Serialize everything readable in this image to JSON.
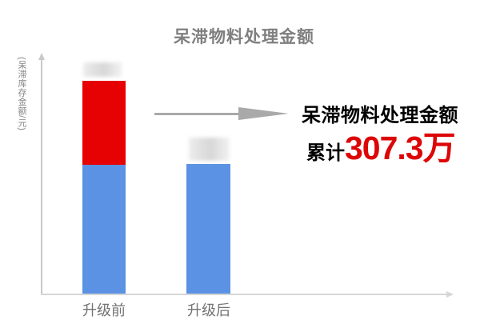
{
  "title": "呆滞物料处理金额",
  "y_axis_label": "(呆滞库存金额/元)",
  "categories": [
    "升级前",
    "升级后"
  ],
  "annotation": {
    "line1": "呆滞物料处理金额",
    "prefix": "累计",
    "value": "307.3万"
  },
  "colors": {
    "bar_blue": "#5c92e3",
    "bar_red": "#e60202",
    "title_gray": "#7f7f7f",
    "axis_gray": "#c9c9c9",
    "callout_arrow_gray": "#a9a9a9",
    "annotation_black": "#000000",
    "annotation_red": "#dd0606"
  },
  "chart_data": {
    "type": "bar",
    "stacked": true,
    "title": "呆滞物料处理金额",
    "ylabel": "(呆滞库存金额/元)",
    "xlabel": "",
    "categories": [
      "升级前",
      "升级后"
    ],
    "series": [
      {
        "name": "remaining-inventory-blue",
        "relative_heights": [
          0.553,
          0.556
        ]
      },
      {
        "name": "processed-amount-red",
        "relative_heights": [
          0.358,
          0
        ]
      }
    ],
    "bar_value_labels": [
      "redacted-blur",
      "redacted-blur"
    ],
    "annotation": "呆滞物料处理金额 累计307.3万",
    "axis_ranges": {
      "y_ticks": [],
      "values_visible": false
    },
    "grid": false,
    "legend": false
  }
}
